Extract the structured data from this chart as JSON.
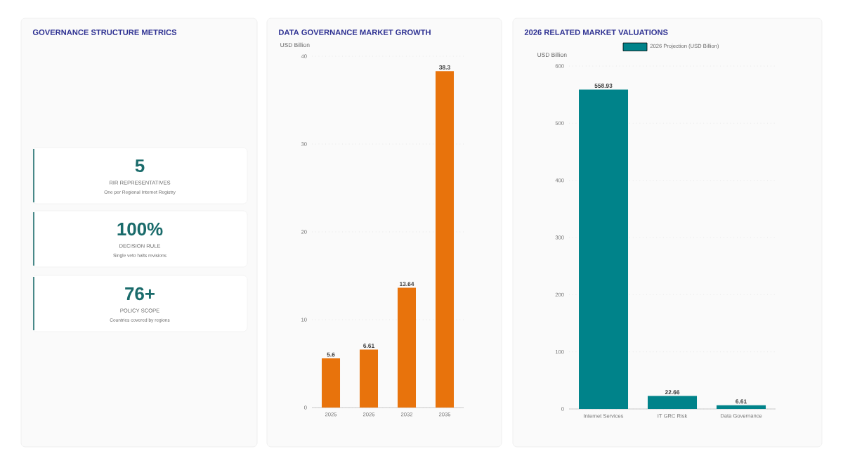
{
  "chart_data": [
    {
      "type": "other",
      "title": "GOVERNANCE STRUCTURE METRICS",
      "annotations": [
        "5",
        "RIR REPRESENTATIVES",
        "One per Regional Internet Registry",
        "100%",
        "DECISION RULE",
        "Single veto halts revisions",
        "76+",
        "POLICY SCOPE",
        "Countries covered by regions"
      ]
    },
    {
      "type": "bar",
      "title": "DATA GOVERNANCE MARKET GROWTH",
      "ylabel": "USD Billion",
      "categories": [
        "2025",
        "2026",
        "2032",
        "2035"
      ],
      "values": [
        5.6,
        6.61,
        13.64,
        38.3
      ],
      "color": "#e8730c",
      "ylim": [
        0,
        40
      ],
      "yticks": [
        0,
        10,
        20,
        30,
        40
      ],
      "grid": "y",
      "data_labels": true
    },
    {
      "type": "bar",
      "title": "2026 RELATED MARKET VALUATIONS",
      "ylabel": "USD Billion",
      "categories": [
        "Internet Services",
        "IT GRC Risk",
        "Data Governance"
      ],
      "series": [
        {
          "name": "2026 Projection (USD Billion)",
          "color": "#00838a",
          "values": [
            558.93,
            22.66,
            6.61
          ]
        }
      ],
      "ylim": [
        0,
        600
      ],
      "yticks": [
        0,
        100,
        200,
        300,
        400,
        500,
        600
      ],
      "grid": "y",
      "data_labels": true,
      "legend": "top"
    }
  ]
}
